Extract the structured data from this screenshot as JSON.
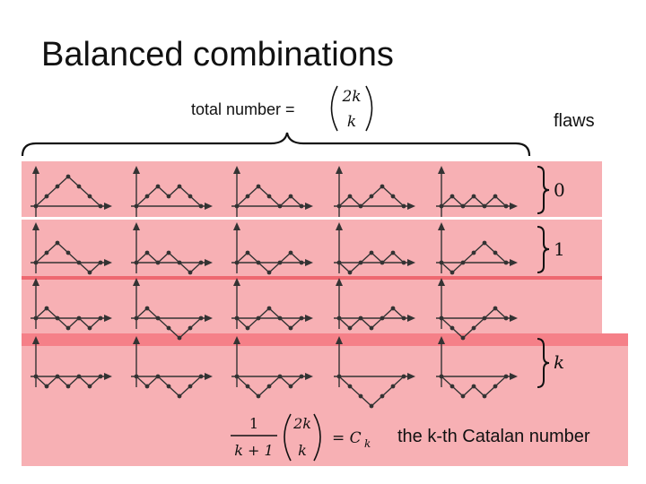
{
  "slide": {
    "title": "Balanced combinations",
    "total_label": "total number =",
    "binomial_top": "2k",
    "binomial_bottom": "k",
    "flaws_label": "flaws",
    "flaw_values": [
      "0",
      "1",
      "k"
    ],
    "catalan_formula": {
      "numerator": "1",
      "denominator": "k + 1",
      "binomial_top": "2k",
      "binomial_bottom": "k",
      "equals": "= C",
      "subscript": "k"
    },
    "catalan_label": "the k-th Catalan number"
  },
  "colors": {
    "band": "#f7b0b4",
    "band_divider": "#ee6870",
    "highlight_row": "#f58088",
    "path": "#333333"
  },
  "paths": {
    "rows": [
      [
        [
          1,
          1,
          1,
          -1,
          -1,
          -1
        ],
        [
          1,
          1,
          -1,
          1,
          -1,
          -1
        ],
        [
          1,
          1,
          -1,
          -1,
          1,
          -1
        ],
        [
          1,
          -1,
          1,
          1,
          -1,
          -1
        ],
        [
          1,
          -1,
          1,
          -1,
          1,
          -1
        ]
      ],
      [
        [
          1,
          1,
          -1,
          -1,
          -1,
          1
        ],
        [
          1,
          -1,
          1,
          -1,
          -1,
          1
        ],
        [
          1,
          -1,
          -1,
          1,
          1,
          -1
        ],
        [
          -1,
          1,
          1,
          -1,
          1,
          -1
        ],
        [
          -1,
          1,
          1,
          1,
          -1,
          -1
        ]
      ],
      [
        [
          1,
          -1,
          -1,
          1,
          -1,
          1
        ],
        [
          1,
          -1,
          -1,
          -1,
          1,
          1
        ],
        [
          -1,
          1,
          1,
          -1,
          -1,
          1
        ],
        [
          -1,
          1,
          -1,
          1,
          1,
          -1
        ],
        [
          -1,
          -1,
          1,
          1,
          1,
          -1
        ]
      ],
      [
        [
          -1,
          1,
          -1,
          1,
          -1,
          1
        ],
        [
          -1,
          1,
          -1,
          -1,
          1,
          1
        ],
        [
          -1,
          -1,
          1,
          1,
          -1,
          1
        ],
        [
          -1,
          -1,
          -1,
          1,
          1,
          1
        ],
        [
          -1,
          -1,
          1,
          -1,
          1,
          1
        ]
      ]
    ]
  }
}
